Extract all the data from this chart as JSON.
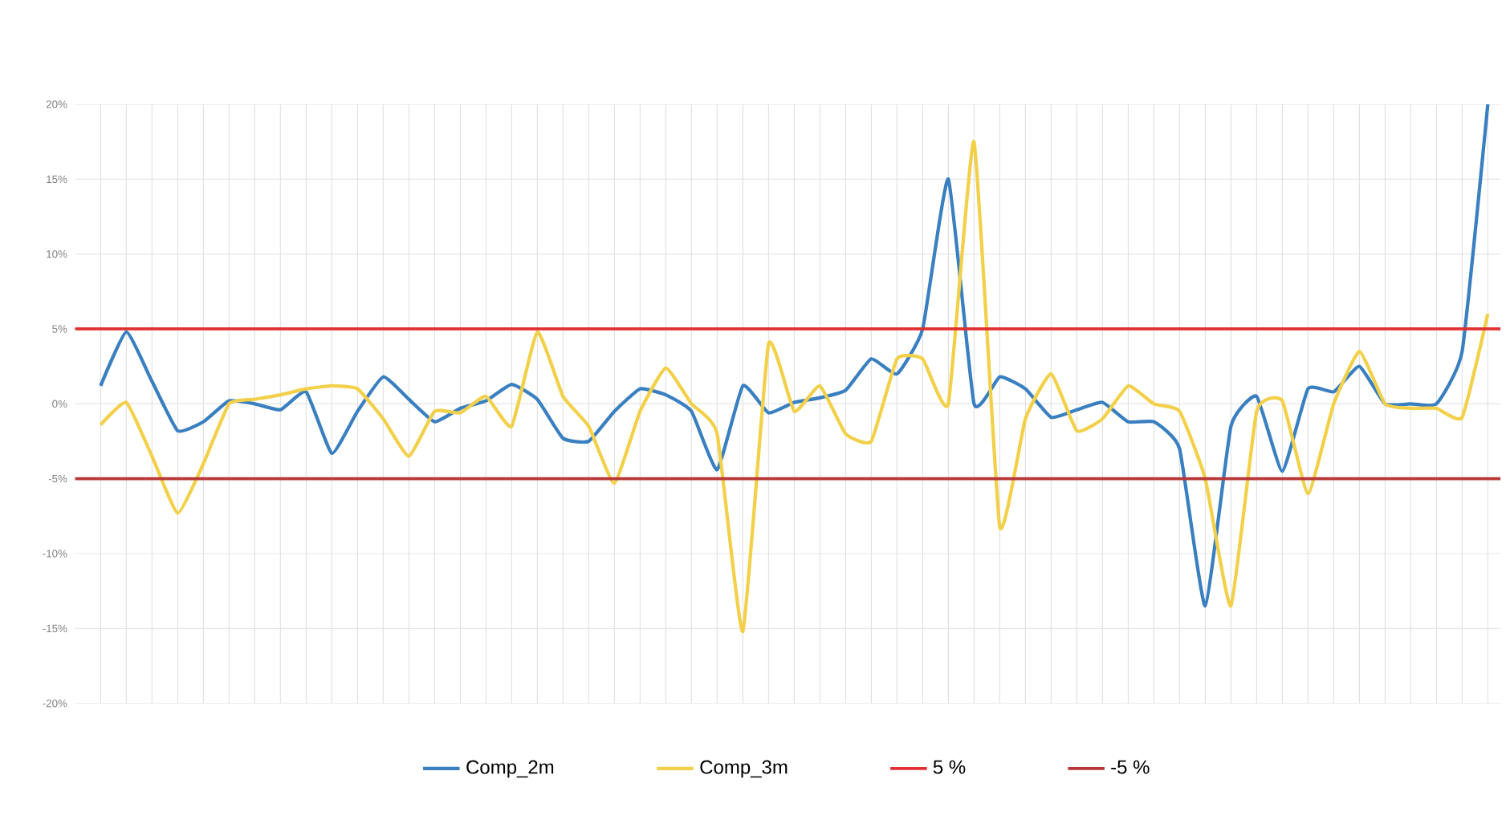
{
  "chart_data": {
    "type": "line",
    "categories": [
      null,
      null,
      null,
      null,
      null,
      null,
      null,
      null,
      null,
      null,
      null,
      null,
      null,
      null,
      null,
      null,
      null,
      null,
      null,
      null,
      null,
      null,
      null,
      null,
      null,
      null,
      null,
      null,
      null,
      null,
      null,
      null,
      null,
      null,
      null,
      null,
      null,
      null,
      null,
      null,
      null,
      null,
      null,
      null,
      null,
      null,
      null,
      null,
      null,
      null,
      null,
      null,
      null,
      null,
      null
    ],
    "series": [
      {
        "name": "Comp_2m",
        "color": "#3a7fc0",
        "values": [
          1.2,
          4.8,
          1.5,
          -1.8,
          -1.2,
          0.2,
          0,
          -0.4,
          0.8,
          -3.3,
          -0.5,
          1.8,
          0.3,
          -1.2,
          -0.3,
          0.2,
          1.3,
          0.3,
          -2.3,
          -2.5,
          -0.5,
          1,
          0.6,
          -0.5,
          -4.4,
          1.2,
          -0.6,
          0.1,
          0.4,
          0.9,
          3,
          2,
          5,
          15,
          0,
          1.8,
          1,
          -0.9,
          -0.4,
          0.1,
          -1.2,
          -1.2,
          -3,
          -13.5,
          -1.5,
          0.5,
          -4.5,
          1,
          0.8,
          2.5,
          0,
          0,
          0,
          3.5,
          20
        ]
      },
      {
        "name": "Comp_3m",
        "color": "#f2d04a",
        "values": [
          -1.4,
          0.1,
          -3.5,
          -7.3,
          -4,
          0,
          0.3,
          0.6,
          1,
          1.2,
          1,
          -1,
          -3.5,
          -0.5,
          -0.6,
          0.5,
          -1.5,
          4.8,
          0.5,
          -1.5,
          -5.3,
          -0.5,
          2.4,
          0,
          -2,
          -15.2,
          4,
          -0.5,
          1.2,
          -2,
          -2.5,
          3,
          3,
          0,
          17.5,
          -8.2,
          -1,
          2,
          -1.8,
          -1,
          1.2,
          0,
          -0.5,
          -5,
          -13.5,
          -0.5,
          0.2,
          -6,
          0,
          3.5,
          0,
          -0.3,
          -0.3,
          -0.9,
          6
        ]
      }
    ],
    "ylim": [
      -20,
      20
    ],
    "yticks": [
      {
        "value": -20,
        "label": "-20%"
      },
      {
        "value": -15,
        "label": "-15%"
      },
      {
        "value": -10,
        "label": "-10%"
      },
      {
        "value": -5,
        "label": "-5%"
      },
      {
        "value": 0,
        "label": "0%"
      },
      {
        "value": 5,
        "label": "5%"
      },
      {
        "value": 10,
        "label": "10%"
      },
      {
        "value": 15,
        "label": "15%"
      },
      {
        "value": 20,
        "label": "20%"
      }
    ],
    "ref_lines": [
      {
        "axis": "y",
        "value": 5,
        "label": "5 %",
        "color": "#e03030"
      },
      {
        "axis": "y",
        "value": -5,
        "label": "-5 %",
        "color": "#b83535"
      }
    ],
    "grid": true,
    "legend": "bottom",
    "marker": "none",
    "line_style": "solid"
  }
}
